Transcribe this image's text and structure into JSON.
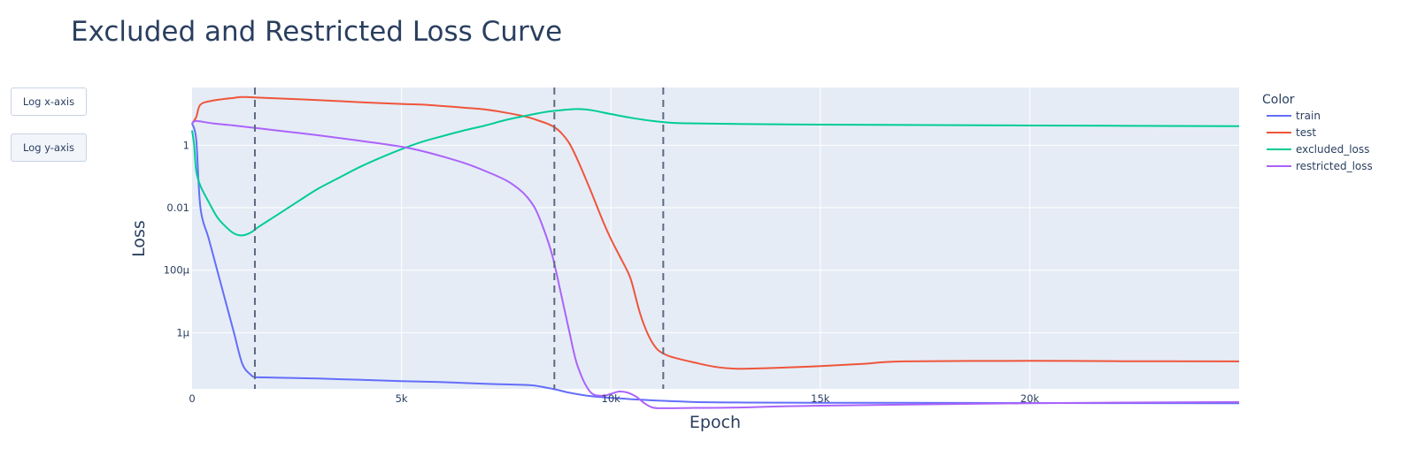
{
  "buttons": {
    "log_x": "Log x-axis",
    "log_y": "Log y-axis"
  },
  "chart_data": {
    "type": "line",
    "title": "Excluded and Restricted Loss Curve",
    "xlabel": "Epoch",
    "ylabel": "Loss",
    "legend_title": "Color",
    "legend_position": "top-right",
    "y_scale": "log",
    "xlim": [
      0,
      25000
    ],
    "ylim_log10": [
      -7.8,
      1.85
    ],
    "x_ticks": [
      {
        "value": 0,
        "label": "0"
      },
      {
        "value": 5000,
        "label": "5k"
      },
      {
        "value": 10000,
        "label": "10k"
      },
      {
        "value": 15000,
        "label": "15k"
      },
      {
        "value": 20000,
        "label": "20k"
      }
    ],
    "y_ticks": [
      {
        "value": 1,
        "label": "1"
      },
      {
        "value": 0.01,
        "label": "0.01"
      },
      {
        "value": 0.0001,
        "label": "100µ"
      },
      {
        "value": 1e-06,
        "label": "1µ"
      }
    ],
    "grid": true,
    "vlines": [
      1500,
      8650,
      11250
    ],
    "series": [
      {
        "name": "train",
        "color": "#636efa",
        "x": [
          0,
          100,
          200,
          400,
          600,
          800,
          1000,
          1200,
          1400,
          1500,
          1700,
          3000,
          5000,
          6000,
          7000,
          8000,
          8300,
          8700,
          9000,
          9500,
          10000,
          10500,
          11000,
          11250,
          12000,
          13000,
          15000,
          20000,
          25000
        ],
        "y": [
          5,
          1.5,
          0.01,
          0.001,
          0.0001,
          1e-05,
          1e-06,
          1e-07,
          4.5e-08,
          3.8e-08,
          3.7e-08,
          3.4e-08,
          2.8e-08,
          2.6e-08,
          2.3e-08,
          2.1e-08,
          1.9e-08,
          1.5e-08,
          1.2e-08,
          9.3e-09,
          8.2e-09,
          7.4e-09,
          6.8e-09,
          6.6e-09,
          6e-09,
          5.8e-09,
          5.7e-09,
          5.6e-09,
          5.5e-09
        ]
      },
      {
        "name": "test",
        "color": "#ef553b",
        "x": [
          0,
          100,
          200,
          500,
          1000,
          1200,
          1500,
          2000,
          3000,
          4000,
          5000,
          5500,
          6000,
          6500,
          7000,
          7500,
          8000,
          8300,
          8500,
          8650,
          8800,
          9000,
          9200,
          9500,
          9800,
          10000,
          10200,
          10400,
          10500,
          10700,
          10900,
          11100,
          11300,
          11500,
          12000,
          12500,
          13000,
          14000,
          15000,
          16000,
          17000,
          20000,
          22000,
          25000
        ],
        "y": [
          5,
          8,
          20,
          27,
          33,
          35,
          34,
          32,
          28,
          24,
          21,
          20,
          18,
          16,
          14,
          11,
          8,
          6,
          4.8,
          3.8,
          2.6,
          1.2,
          0.35,
          0.04,
          0.004,
          0.001,
          0.0003,
          9e-05,
          4e-05,
          4e-06,
          8e-07,
          3e-07,
          2e-07,
          1.6e-07,
          1.1e-07,
          8e-08,
          7e-08,
          7.5e-08,
          8.5e-08,
          1e-07,
          1.2e-07,
          1.25e-07,
          1.22e-07,
          1.2e-07
        ]
      },
      {
        "name": "excluded_loss",
        "color": "#00cc96",
        "x": [
          0,
          50,
          100,
          200,
          400,
          600,
          800,
          1000,
          1200,
          1400,
          1600,
          2000,
          2500,
          3000,
          3500,
          4000,
          4500,
          5000,
          5500,
          6000,
          6500,
          7000,
          7500,
          8000,
          8500,
          9000,
          9200,
          9500,
          10000,
          10500,
          11000,
          11500,
          12000,
          13000,
          15000,
          20000,
          25000
        ],
        "y": [
          3,
          1,
          0.15,
          0.05,
          0.015,
          0.005,
          0.0025,
          0.0015,
          0.0013,
          0.0016,
          0.0025,
          0.0055,
          0.015,
          0.04,
          0.09,
          0.2,
          0.4,
          0.75,
          1.3,
          2,
          3,
          4.3,
          6.5,
          9,
          12,
          14,
          14.5,
          13.5,
          10,
          7.5,
          6,
          5.2,
          5,
          4.8,
          4.6,
          4.3,
          4.1
        ]
      },
      {
        "name": "restricted_loss",
        "color": "#ab63fa",
        "x": [
          0,
          100,
          500,
          1000,
          1500,
          2000,
          3000,
          4000,
          5000,
          5500,
          6000,
          6500,
          7000,
          7500,
          7800,
          8000,
          8200,
          8400,
          8600,
          8800,
          9000,
          9200,
          9500,
          9800,
          10000,
          10200,
          10400,
          10600,
          10800,
          11000,
          11250,
          12000,
          13000,
          15000,
          20000,
          25000
        ],
        "y": [
          5,
          6,
          5,
          4.3,
          3.6,
          3,
          2.1,
          1.4,
          0.9,
          0.65,
          0.43,
          0.27,
          0.15,
          0.075,
          0.04,
          0.022,
          0.009,
          0.002,
          0.0003,
          2e-05,
          1.2e-06,
          9e-08,
          1.3e-08,
          9.5e-09,
          1.1e-08,
          1.3e-08,
          1.2e-08,
          9e-09,
          5.5e-09,
          4e-09,
          3.8e-09,
          3.9e-09,
          4e-09,
          4.6e-09,
          5.5e-09,
          6e-09
        ]
      }
    ]
  }
}
